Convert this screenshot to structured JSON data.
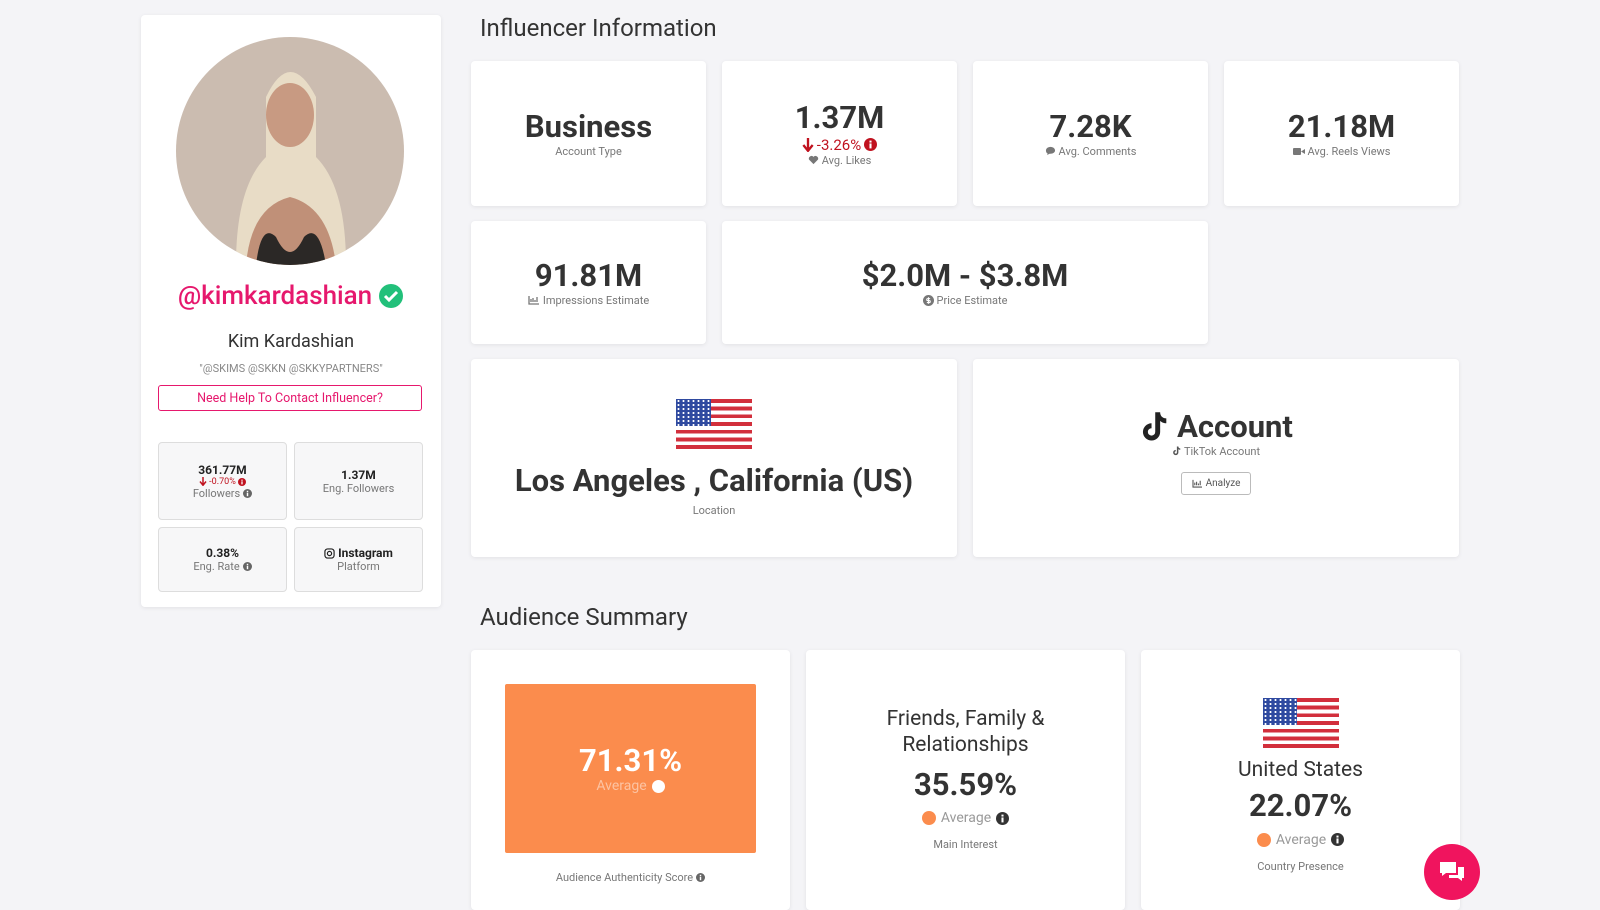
{
  "profile": {
    "handle": "@kimkardashian",
    "name": "Kim Kardashian",
    "bio": "\"@SKIMS @SKKN @SKKYPARTNERS\"",
    "contact_button": "Need Help To Contact Influencer?",
    "stats": [
      {
        "value": "361.77M",
        "change": "-0.70%",
        "label": "Followers"
      },
      {
        "value": "1.37M",
        "label": "Eng. Followers"
      },
      {
        "value": "0.38%",
        "label": "Eng. Rate"
      },
      {
        "value": "Instagram",
        "label": "Platform"
      }
    ]
  },
  "influencer_info": {
    "title": "Influencer Information",
    "cards": [
      {
        "value": "Business",
        "label": "Account Type"
      },
      {
        "value": "1.37M",
        "change": "-3.26%",
        "label": "Avg. Likes"
      },
      {
        "value": "7.28K",
        "label": "Avg. Comments"
      },
      {
        "value": "21.18M",
        "label": "Avg. Reels Views"
      },
      {
        "value": "91.81M",
        "label": "Impressions Estimate"
      },
      {
        "value": "$2.0M - $3.8M",
        "label": "Price Estimate"
      }
    ],
    "location": {
      "value": "Los Angeles , California (US)",
      "label": "Location"
    },
    "tiktok": {
      "value": "Account",
      "label": "TikTok Account",
      "button": "Analyze"
    }
  },
  "audience_summary": {
    "title": "Audience Summary",
    "cards": [
      {
        "value": "71.31%",
        "rating": "Average",
        "label": "Audience Authenticity Score"
      },
      {
        "heading": "Friends, Family & Relationships",
        "value": "35.59%",
        "rating": "Average",
        "label": "Main Interest"
      },
      {
        "heading": "United States",
        "value": "22.07%",
        "rating": "Average",
        "label": "Country Presence"
      }
    ]
  }
}
